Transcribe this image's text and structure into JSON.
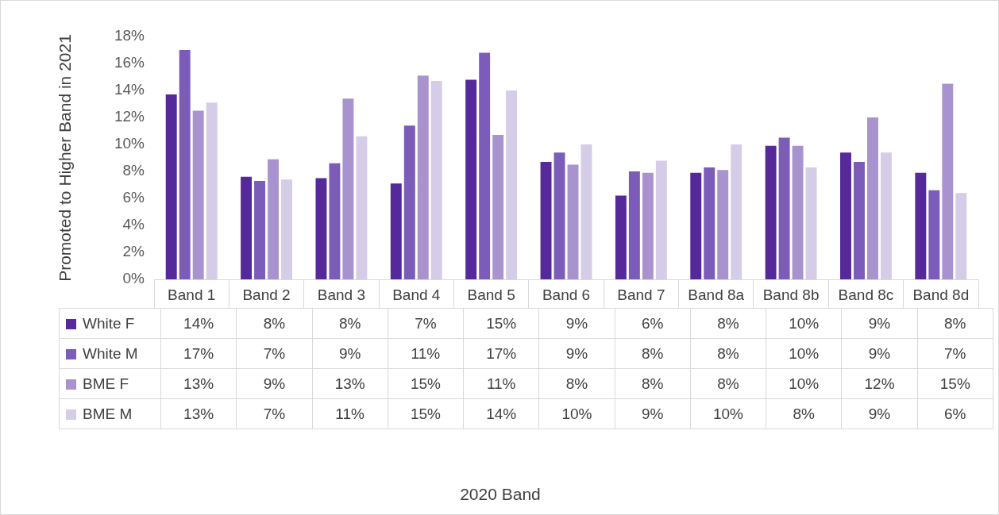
{
  "chart_data": {
    "type": "bar",
    "annotations": [
      "2020 Band"
    ],
    "ylabel": "Promoted to Higher Band in 2021",
    "categories": [
      "Band 1",
      "Band 2",
      "Band 3",
      "Band 4",
      "Band 5",
      "Band 6",
      "Band 7",
      "Band 8a",
      "Band 8b",
      "Band 8c",
      "Band 8d"
    ],
    "series": [
      {
        "name": "White F",
        "color": "#55299a",
        "values": [
          13.7,
          7.6,
          7.5,
          7.1,
          14.8,
          8.7,
          6.2,
          7.9,
          9.9,
          9.4,
          7.9
        ],
        "value_labels": [
          "14%",
          "8%",
          "8%",
          "7%",
          "15%",
          "9%",
          "6%",
          "8%",
          "10%",
          "9%",
          "8%"
        ]
      },
      {
        "name": "White M",
        "color": "#7b5cb8",
        "values": [
          17.0,
          7.3,
          8.6,
          11.4,
          16.8,
          9.4,
          8.0,
          8.3,
          10.5,
          8.7,
          6.6
        ],
        "value_labels": [
          "17%",
          "7%",
          "9%",
          "11%",
          "17%",
          "9%",
          "8%",
          "8%",
          "10%",
          "9%",
          "7%"
        ]
      },
      {
        "name": "BME F",
        "color": "#a893cf",
        "values": [
          12.5,
          8.9,
          13.4,
          15.1,
          10.7,
          8.5,
          7.9,
          8.1,
          9.9,
          12.0,
          14.5
        ],
        "value_labels": [
          "13%",
          "9%",
          "13%",
          "15%",
          "11%",
          "8%",
          "8%",
          "8%",
          "10%",
          "12%",
          "15%"
        ]
      },
      {
        "name": "BME M",
        "color": "#d5cce8",
        "values": [
          13.1,
          7.4,
          10.6,
          14.7,
          14.0,
          10.0,
          8.8,
          10.0,
          8.3,
          9.4,
          6.4
        ],
        "value_labels": [
          "13%",
          "7%",
          "11%",
          "15%",
          "14%",
          "10%",
          "9%",
          "10%",
          "8%",
          "9%",
          "6%"
        ]
      }
    ],
    "ylim": [
      0,
      18
    ],
    "yticks": [
      {
        "value": 0,
        "label": "0%"
      },
      {
        "value": 2,
        "label": "2%"
      },
      {
        "value": 4,
        "label": "4%"
      },
      {
        "value": 6,
        "label": "6%"
      },
      {
        "value": 8,
        "label": "8%"
      },
      {
        "value": 10,
        "label": "10%"
      },
      {
        "value": 12,
        "label": "12%"
      },
      {
        "value": 14,
        "label": "14%"
      },
      {
        "value": 16,
        "label": "16%"
      },
      {
        "value": 18,
        "label": "18%"
      }
    ],
    "grid": false,
    "legend": "bottom"
  }
}
